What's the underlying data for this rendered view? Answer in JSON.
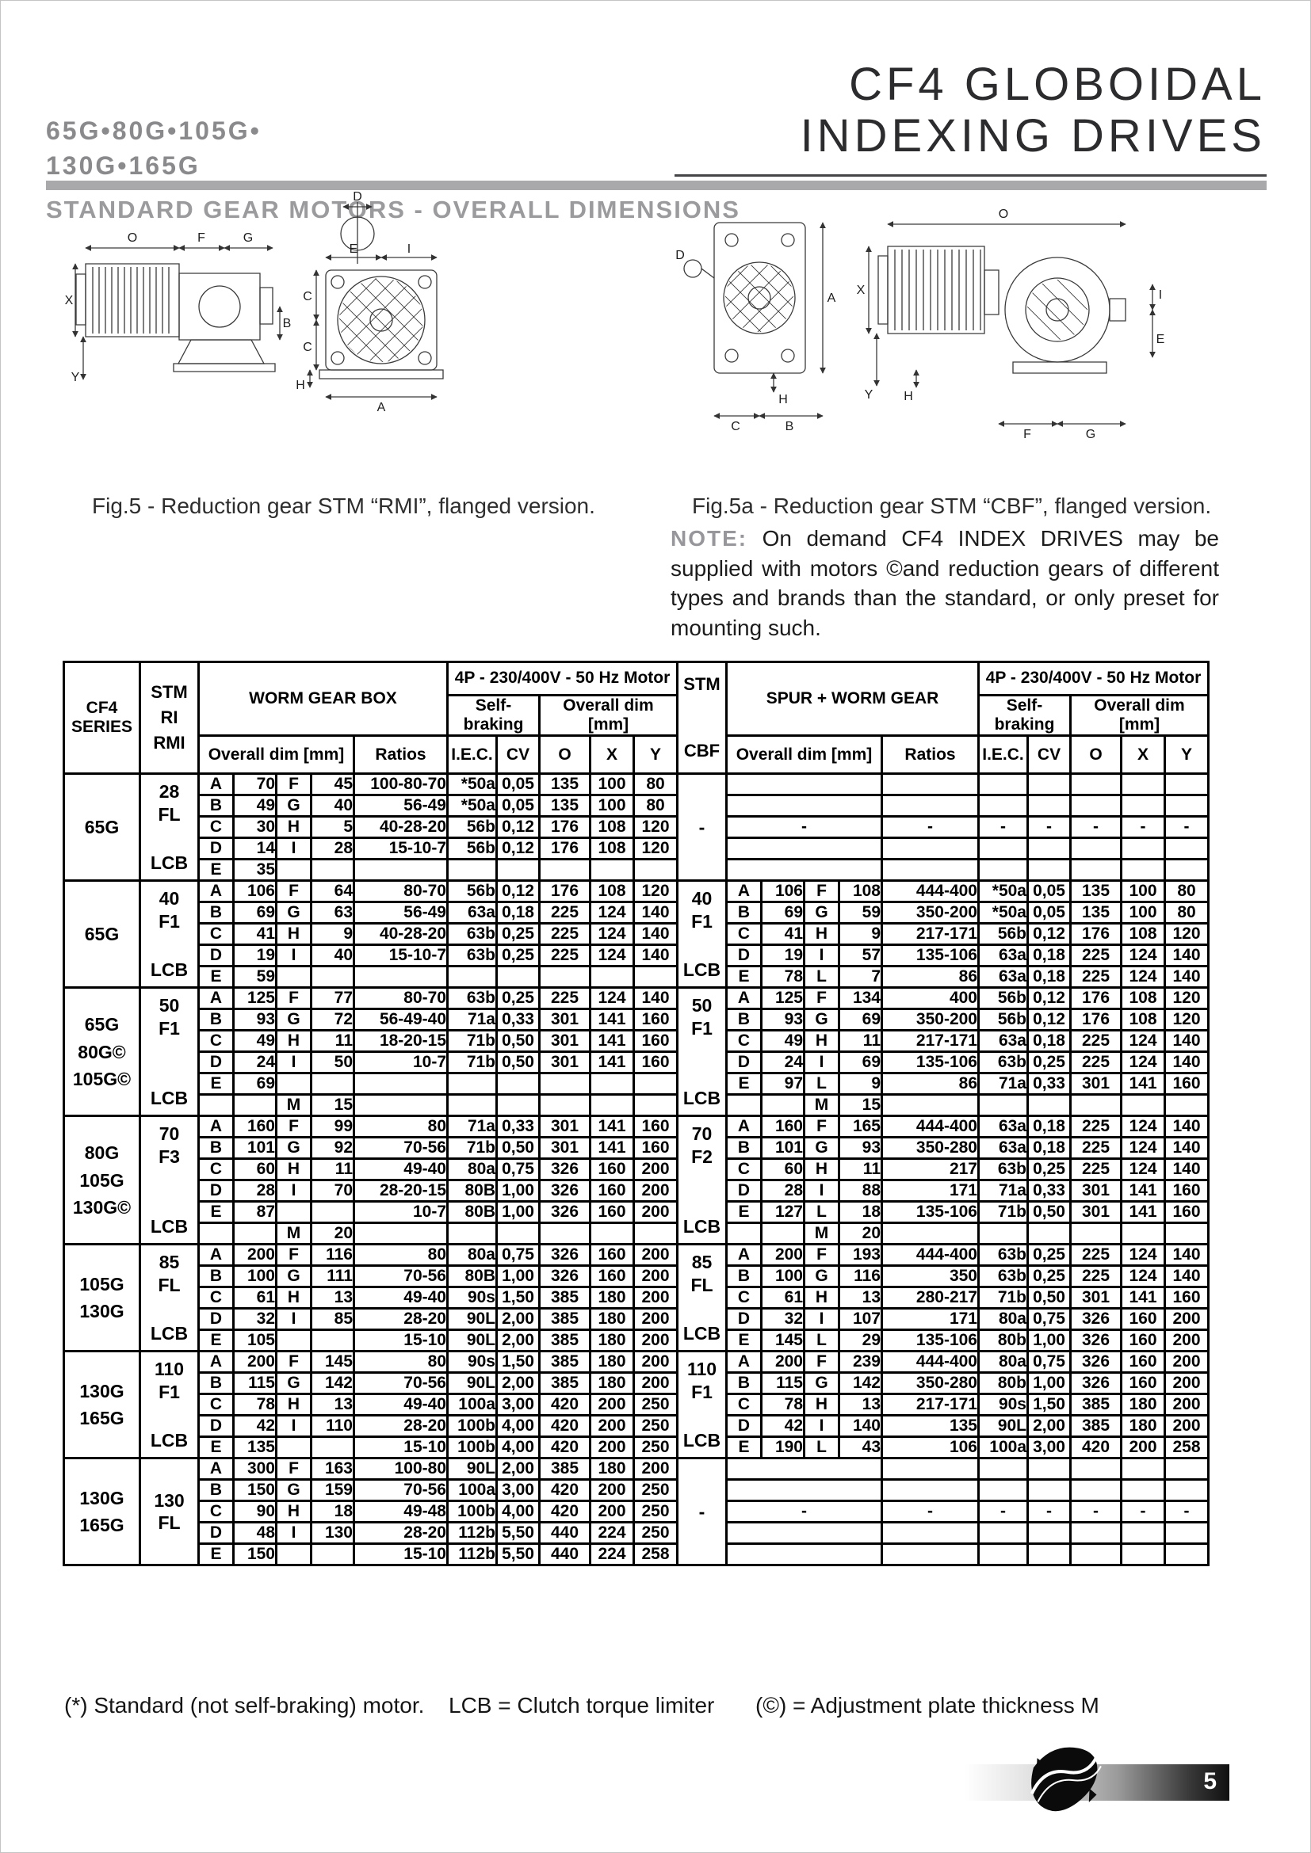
{
  "header": {
    "models_line1": "65G•80G•105G•",
    "models_line2": "130G•165G",
    "title": "CF4 GLOBOIDAL\nINDEXING DRIVES",
    "section_title": "STANDARD GEAR MOTORS - OVERALL DIMENSIONS"
  },
  "figures": {
    "fig5_caption": "Fig.5 - Reduction gear STM “RMI”, flanged version.",
    "fig5a_caption": "Fig.5a - Reduction gear STM “CBF”, flanged version.",
    "note_label": "NOTE:",
    "note_text": " On demand CF4 INDEX DRIVES may be supplied with motors ©and reduction gears of different types and brands than the standard, or only preset for mounting such.",
    "fig5_labels": {
      "d": "D",
      "o": "O",
      "f": "F",
      "g": "G",
      "e": "E",
      "i": "I",
      "c": "C",
      "x": "X",
      "b": "B",
      "y": "Y",
      "h": "H",
      "a": "A"
    },
    "fig5a_labels": {
      "d": "D",
      "o": "O",
      "a": "A",
      "x": "X",
      "i": "I",
      "e": "E",
      "h": "H",
      "y": "Y",
      "c": "C",
      "b": "B",
      "f": "F",
      "g": "G"
    }
  },
  "table": {
    "headers": {
      "cf4_series": "CF4\nSERIES",
      "stm_ri": "STM\nRI\nRMI",
      "stm_cbf": "STM\n\nCBF",
      "worm_gear_box": "WORM GEAR BOX",
      "spur_worm_gear": "SPUR + WORM GEAR",
      "motor_4p": "4P - 230/400V - 50 Hz Motor",
      "self_braking": "Self-braking",
      "overall_dim": "Overall dim [mm]",
      "ratios": "Ratios",
      "iec": "I.E.C.",
      "cv": "CV",
      "o": "O",
      "x": "X",
      "y": "Y"
    },
    "blocks": [
      {
        "series": "65G",
        "left": {
          "stm_top": "28\nFL",
          "stm_bottom": "LCB",
          "rows": [
            [
              "A",
              "70",
              "F",
              "45",
              "100-80-70",
              "*50a",
              "0,05",
              "135",
              "100",
              "80"
            ],
            [
              "B",
              "49",
              "G",
              "40",
              "56-49",
              "*50a",
              "0,05",
              "135",
              "100",
              "80"
            ],
            [
              "C",
              "30",
              "H",
              "5",
              "40-28-20",
              "56b",
              "0,12",
              "176",
              "108",
              "120"
            ],
            [
              "D",
              "14",
              "I",
              "28",
              "15-10-7",
              "56b",
              "0,12",
              "176",
              "108",
              "120"
            ],
            [
              "E",
              "35",
              "",
              "",
              "",
              "",
              "",
              "",
              "",
              ""
            ]
          ]
        },
        "right": {
          "empty": true,
          "stm_top": "-",
          "stm_bottom": "",
          "dash_row": 2
        }
      },
      {
        "series": "65G",
        "left": {
          "stm_top": "40\nF1",
          "stm_bottom": "LCB",
          "rows": [
            [
              "A",
              "106",
              "F",
              "64",
              "80-70",
              "56b",
              "0,12",
              "176",
              "108",
              "120"
            ],
            [
              "B",
              "69",
              "G",
              "63",
              "56-49",
              "63a",
              "0,18",
              "225",
              "124",
              "140"
            ],
            [
              "C",
              "41",
              "H",
              "9",
              "40-28-20",
              "63b",
              "0,25",
              "225",
              "124",
              "140"
            ],
            [
              "D",
              "19",
              "I",
              "40",
              "15-10-7",
              "63b",
              "0,25",
              "225",
              "124",
              "140"
            ],
            [
              "E",
              "59",
              "",
              "",
              "",
              "",
              "",
              "",
              "",
              ""
            ]
          ]
        },
        "right": {
          "empty": false,
          "stm_top": "40\nF1",
          "stm_bottom": "LCB",
          "rows": [
            [
              "A",
              "106",
              "F",
              "108",
              "444-400",
              "*50a",
              "0,05",
              "135",
              "100",
              "80"
            ],
            [
              "B",
              "69",
              "G",
              "59",
              "350-200",
              "*50a",
              "0,05",
              "135",
              "100",
              "80"
            ],
            [
              "C",
              "41",
              "H",
              "9",
              "217-171",
              "56b",
              "0,12",
              "176",
              "108",
              "120"
            ],
            [
              "D",
              "19",
              "I",
              "57",
              "135-106",
              "63a",
              "0,18",
              "225",
              "124",
              "140"
            ],
            [
              "E",
              "78",
              "L",
              "7",
              "86",
              "63a",
              "0,18",
              "225",
              "124",
              "140"
            ]
          ]
        }
      },
      {
        "series": "65G\n80G©\n105G©",
        "left": {
          "stm_top": "50\nF1",
          "stm_bottom": "LCB",
          "rows": [
            [
              "A",
              "125",
              "F",
              "77",
              "80-70",
              "63b",
              "0,25",
              "225",
              "124",
              "140"
            ],
            [
              "B",
              "93",
              "G",
              "72",
              "56-49-40",
              "71a",
              "0,33",
              "301",
              "141",
              "160"
            ],
            [
              "C",
              "49",
              "H",
              "11",
              "18-20-15",
              "71b",
              "0,50",
              "301",
              "141",
              "160"
            ],
            [
              "D",
              "24",
              "I",
              "50",
              "10-7",
              "71b",
              "0,50",
              "301",
              "141",
              "160"
            ],
            [
              "E",
              "69",
              "",
              "",
              "",
              "",
              "",
              "",
              "",
              ""
            ],
            [
              "",
              "",
              "M",
              "15",
              "",
              "",
              "",
              "",
              "",
              ""
            ]
          ]
        },
        "right": {
          "empty": false,
          "stm_top": "50\nF1",
          "stm_bottom": "LCB",
          "rows": [
            [
              "A",
              "125",
              "F",
              "134",
              "400",
              "56b",
              "0,12",
              "176",
              "108",
              "120"
            ],
            [
              "B",
              "93",
              "G",
              "69",
              "350-200",
              "56b",
              "0,12",
              "176",
              "108",
              "120"
            ],
            [
              "C",
              "49",
              "H",
              "11",
              "217-171",
              "63a",
              "0,18",
              "225",
              "124",
              "140"
            ],
            [
              "D",
              "24",
              "I",
              "69",
              "135-106",
              "63b",
              "0,25",
              "225",
              "124",
              "140"
            ],
            [
              "E",
              "97",
              "L",
              "9",
              "86",
              "71a",
              "0,33",
              "301",
              "141",
              "160"
            ],
            [
              "",
              "",
              "M",
              "15",
              "",
              "",
              "",
              "",
              "",
              ""
            ]
          ]
        }
      },
      {
        "series": "80G\n105G\n130G©",
        "left": {
          "stm_top": "70\nF3",
          "stm_bottom": "LCB",
          "rows": [
            [
              "A",
              "160",
              "F",
              "99",
              "80",
              "71a",
              "0,33",
              "301",
              "141",
              "160"
            ],
            [
              "B",
              "101",
              "G",
              "92",
              "70-56",
              "71b",
              "0,50",
              "301",
              "141",
              "160"
            ],
            [
              "C",
              "60",
              "H",
              "11",
              "49-40",
              "80a",
              "0,75",
              "326",
              "160",
              "200"
            ],
            [
              "D",
              "28",
              "I",
              "70",
              "28-20-15",
              "80B",
              "1,00",
              "326",
              "160",
              "200"
            ],
            [
              "E",
              "87",
              "",
              "",
              "10-7",
              "80B",
              "1,00",
              "326",
              "160",
              "200"
            ],
            [
              "",
              "",
              "M",
              "20",
              "",
              "",
              "",
              "",
              "",
              ""
            ]
          ]
        },
        "right": {
          "empty": false,
          "stm_top": "70\nF2",
          "stm_bottom": "LCB",
          "rows": [
            [
              "A",
              "160",
              "F",
              "165",
              "444-400",
              "63a",
              "0,18",
              "225",
              "124",
              "140"
            ],
            [
              "B",
              "101",
              "G",
              "93",
              "350-280",
              "63a",
              "0,18",
              "225",
              "124",
              "140"
            ],
            [
              "C",
              "60",
              "H",
              "11",
              "217",
              "63b",
              "0,25",
              "225",
              "124",
              "140"
            ],
            [
              "D",
              "28",
              "I",
              "88",
              "171",
              "71a",
              "0,33",
              "301",
              "141",
              "160"
            ],
            [
              "E",
              "127",
              "L",
              "18",
              "135-106",
              "71b",
              "0,50",
              "301",
              "141",
              "160"
            ],
            [
              "",
              "",
              "M",
              "20",
              "",
              "",
              "",
              "",
              "",
              ""
            ]
          ]
        }
      },
      {
        "series": "105G\n130G",
        "left": {
          "stm_top": "85\nFL",
          "stm_bottom": "LCB",
          "rows": [
            [
              "A",
              "200",
              "F",
              "116",
              "80",
              "80a",
              "0,75",
              "326",
              "160",
              "200"
            ],
            [
              "B",
              "100",
              "G",
              "111",
              "70-56",
              "80B",
              "1,00",
              "326",
              "160",
              "200"
            ],
            [
              "C",
              "61",
              "H",
              "13",
              "49-40",
              "90s",
              "1,50",
              "385",
              "180",
              "200"
            ],
            [
              "D",
              "32",
              "I",
              "85",
              "28-20",
              "90L",
              "2,00",
              "385",
              "180",
              "200"
            ],
            [
              "E",
              "105",
              "",
              "",
              "15-10",
              "90L",
              "2,00",
              "385",
              "180",
              "200"
            ]
          ]
        },
        "right": {
          "empty": false,
          "stm_top": "85\nFL",
          "stm_bottom": "LCB",
          "rows": [
            [
              "A",
              "200",
              "F",
              "193",
              "444-400",
              "63b",
              "0,25",
              "225",
              "124",
              "140"
            ],
            [
              "B",
              "100",
              "G",
              "116",
              "350",
              "63b",
              "0,25",
              "225",
              "124",
              "140"
            ],
            [
              "C",
              "61",
              "H",
              "13",
              "280-217",
              "71b",
              "0,50",
              "301",
              "141",
              "160"
            ],
            [
              "D",
              "32",
              "I",
              "107",
              "171",
              "80a",
              "0,75",
              "326",
              "160",
              "200"
            ],
            [
              "E",
              "145",
              "L",
              "29",
              "135-106",
              "80b",
              "1,00",
              "326",
              "160",
              "200"
            ]
          ]
        }
      },
      {
        "series": "130G\n165G",
        "left": {
          "stm_top": "110\nF1",
          "stm_bottom": "LCB",
          "rows": [
            [
              "A",
              "200",
              "F",
              "145",
              "80",
              "90s",
              "1,50",
              "385",
              "180",
              "200"
            ],
            [
              "B",
              "115",
              "G",
              "142",
              "70-56",
              "90L",
              "2,00",
              "385",
              "180",
              "200"
            ],
            [
              "C",
              "78",
              "H",
              "13",
              "49-40",
              "100a",
              "3,00",
              "420",
              "200",
              "250"
            ],
            [
              "D",
              "42",
              "I",
              "110",
              "28-20",
              "100b",
              "4,00",
              "420",
              "200",
              "250"
            ],
            [
              "E",
              "135",
              "",
              "",
              "15-10",
              "100b",
              "4,00",
              "420",
              "200",
              "250"
            ]
          ]
        },
        "right": {
          "empty": false,
          "stm_top": "110\nF1",
          "stm_bottom": "LCB",
          "rows": [
            [
              "A",
              "200",
              "F",
              "239",
              "444-400",
              "80a",
              "0,75",
              "326",
              "160",
              "200"
            ],
            [
              "B",
              "115",
              "G",
              "142",
              "350-280",
              "80b",
              "1,00",
              "326",
              "160",
              "200"
            ],
            [
              "C",
              "78",
              "H",
              "13",
              "217-171",
              "90s",
              "1,50",
              "385",
              "180",
              "200"
            ],
            [
              "D",
              "42",
              "I",
              "140",
              "135",
              "90L",
              "2,00",
              "385",
              "180",
              "200"
            ],
            [
              "E",
              "190",
              "L",
              "43",
              "106",
              "100a",
              "3,00",
              "420",
              "200",
              "258"
            ]
          ]
        }
      },
      {
        "series": "130G\n165G",
        "left": {
          "stm_top": "130\nFL",
          "stm_bottom": "",
          "rows": [
            [
              "A",
              "300",
              "F",
              "163",
              "100-80",
              "90L",
              "2,00",
              "385",
              "180",
              "200"
            ],
            [
              "B",
              "150",
              "G",
              "159",
              "70-56",
              "100a",
              "3,00",
              "420",
              "200",
              "250"
            ],
            [
              "C",
              "90",
              "H",
              "18",
              "49-48",
              "100b",
              "4,00",
              "420",
              "200",
              "250"
            ],
            [
              "D",
              "48",
              "I",
              "130",
              "28-20",
              "112b",
              "5,50",
              "440",
              "224",
              "250"
            ],
            [
              "E",
              "150",
              "",
              "",
              "15-10",
              "112b",
              "5,50",
              "440",
              "224",
              "258"
            ]
          ]
        },
        "right": {
          "empty": true,
          "stm_top": "-",
          "stm_bottom": "",
          "dash_row": 2
        }
      }
    ]
  },
  "footnotes": {
    "asterisk": "(*) Standard (not self-braking) motor.",
    "lcb": "LCB = Clutch torque limiter",
    "copyright": "(©) = Adjustment plate thickness M"
  },
  "footer": {
    "page_number": "5"
  }
}
